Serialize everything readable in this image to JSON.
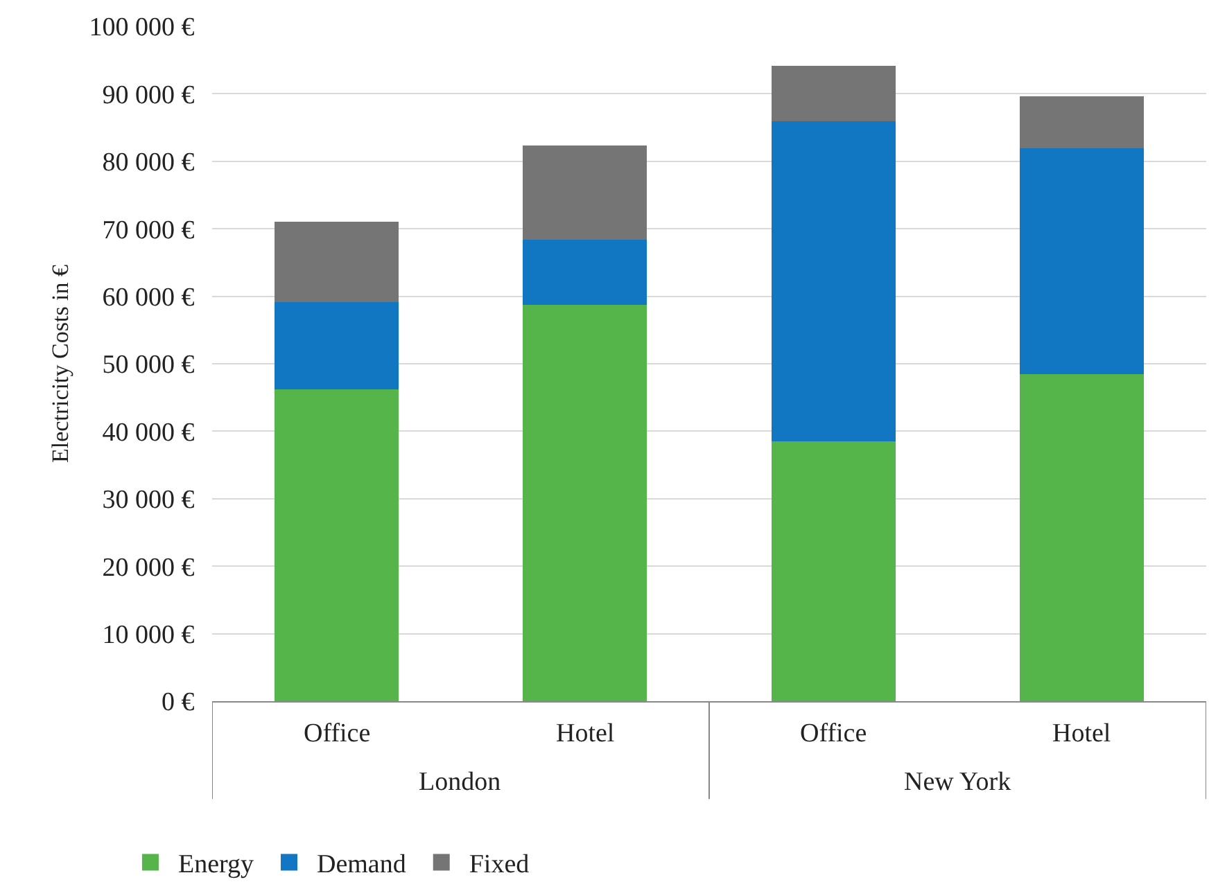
{
  "chart_data": {
    "type": "bar",
    "stacked": true,
    "ylabel": "Electricity Costs in €",
    "categories": [
      "Office",
      "Hotel",
      "Office",
      "Hotel"
    ],
    "series": [
      {
        "name": "Energy",
        "color": "#55b44a",
        "values": [
          46200,
          58700,
          38500,
          48500
        ]
      },
      {
        "name": "Demand",
        "color": "#1177c2",
        "values": [
          12900,
          9700,
          47400,
          33400
        ]
      },
      {
        "name": "Fixed",
        "color": "#757575",
        "values": [
          11900,
          13900,
          8200,
          7700
        ]
      }
    ],
    "ylim": [
      0,
      100000
    ],
    "yticks": [
      {
        "value": 0,
        "label": "0 €"
      },
      {
        "value": 10000,
        "label": "10 000 €"
      },
      {
        "value": 20000,
        "label": "20 000 €"
      },
      {
        "value": 30000,
        "label": "30 000 €"
      },
      {
        "value": 40000,
        "label": "40 000 €"
      },
      {
        "value": 50000,
        "label": "50 000 €"
      },
      {
        "value": 60000,
        "label": "60 000 €"
      },
      {
        "value": 70000,
        "label": "70 000 €"
      },
      {
        "value": 80000,
        "label": "80 000 €"
      },
      {
        "value": 90000,
        "label": "90 000 €"
      },
      {
        "value": 100000,
        "label": "100 000 €"
      }
    ],
    "annotations": [
      "London",
      "New York"
    ],
    "grid": "y",
    "legend": "bottom left"
  }
}
